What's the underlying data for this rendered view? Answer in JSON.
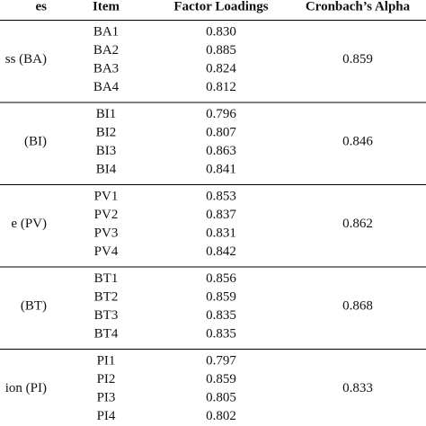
{
  "table": {
    "header": [
      "es",
      "Item",
      "Factor Loadings",
      "Cronbach’s Alpha"
    ],
    "groups": [
      {
        "label": "ss (BA)",
        "items": [
          "BA1",
          "BA2",
          "BA3",
          "BA4"
        ],
        "loadings": [
          "0.830",
          "0.885",
          "0.824",
          "0.812"
        ],
        "alpha": "0.859"
      },
      {
        "label": "(BI)",
        "items": [
          "BI1",
          "BI2",
          "BI3",
          "BI4"
        ],
        "loadings": [
          "0.796",
          "0.807",
          "0.863",
          "0.841"
        ],
        "alpha": "0.846"
      },
      {
        "label": "e (PV)",
        "items": [
          "PV1",
          "PV2",
          "PV3",
          "PV4"
        ],
        "loadings": [
          "0.853",
          "0.837",
          "0.831",
          "0.842"
        ],
        "alpha": "0.862"
      },
      {
        "label": "(BT)",
        "items": [
          "BT1",
          "BT2",
          "BT3",
          "BT4"
        ],
        "loadings": [
          "0.856",
          "0.859",
          "0.835",
          "0.835"
        ],
        "alpha": "0.868"
      },
      {
        "label": "ion (PI)",
        "items": [
          "PI1",
          "PI2",
          "PI3",
          "PI4"
        ],
        "loadings": [
          "0.797",
          "0.859",
          "0.805",
          "0.802"
        ],
        "alpha": "0.833"
      }
    ]
  }
}
